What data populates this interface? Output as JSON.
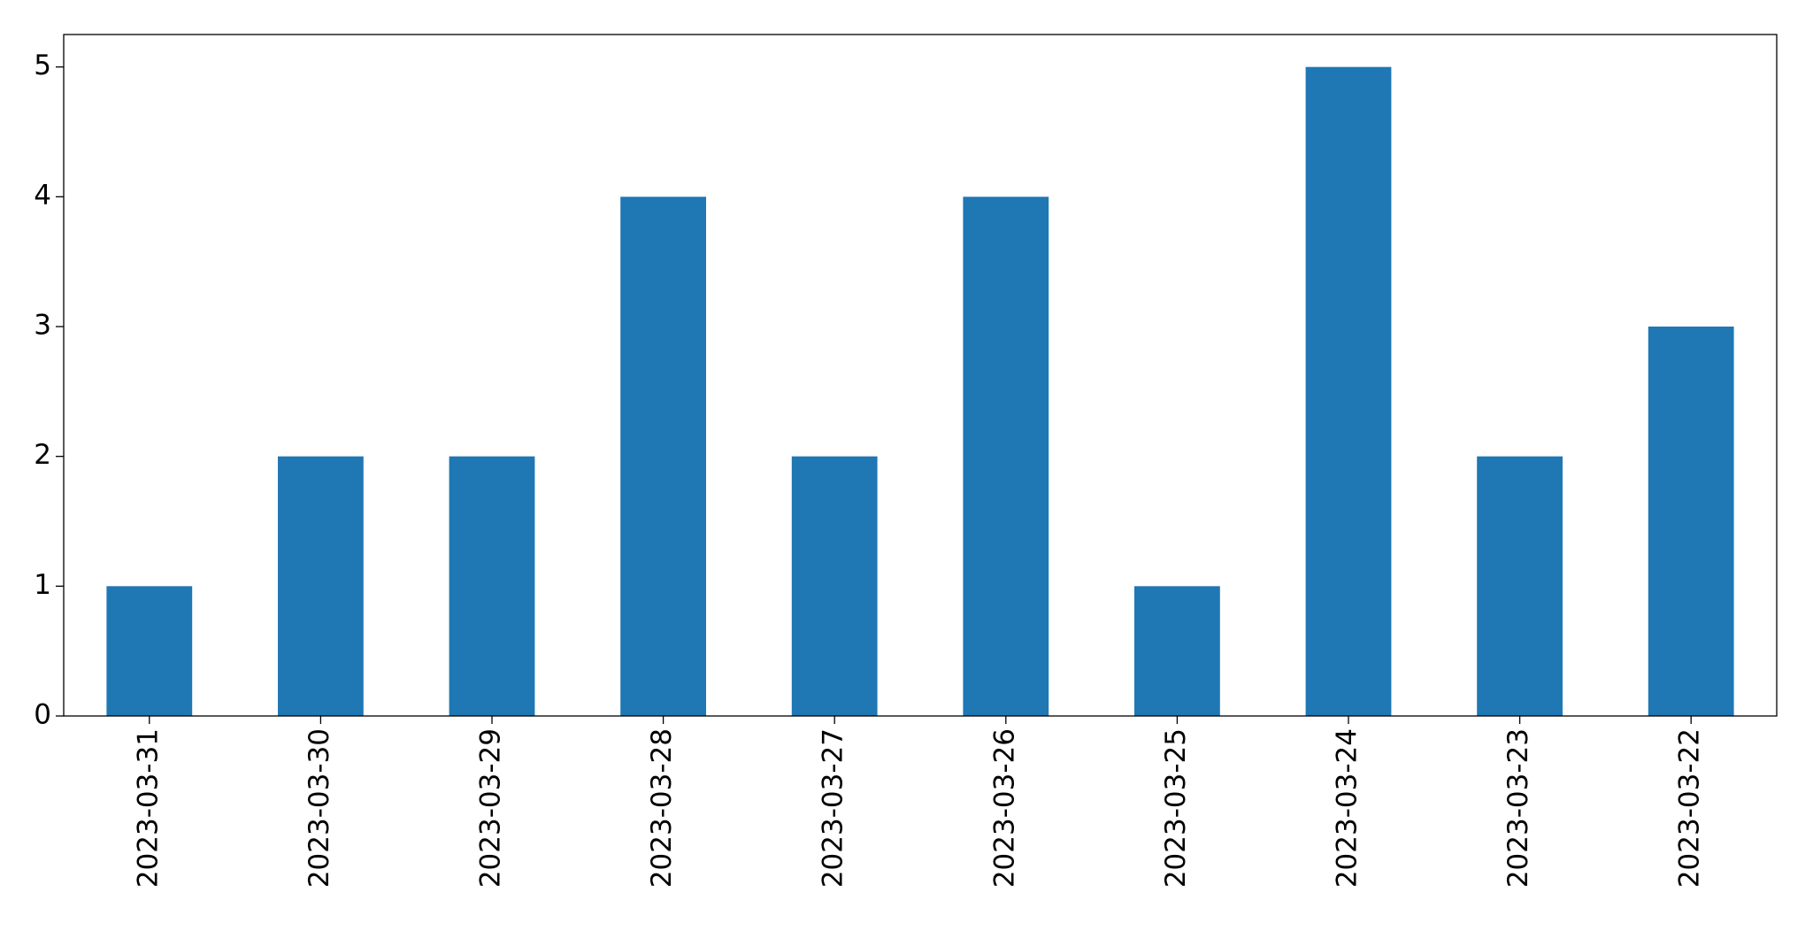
{
  "chart_data": {
    "type": "bar",
    "categories": [
      "2023-03-31",
      "2023-03-30",
      "2023-03-29",
      "2023-03-28",
      "2023-03-27",
      "2023-03-26",
      "2023-03-25",
      "2023-03-24",
      "2023-03-23",
      "2023-03-22"
    ],
    "values": [
      1,
      2,
      2,
      4,
      2,
      4,
      1,
      5,
      2,
      3
    ],
    "color": "#1f77b4",
    "ylim": [
      0,
      5.25
    ],
    "yticks": [
      0,
      1,
      2,
      3,
      4,
      5
    ],
    "grid": false
  }
}
